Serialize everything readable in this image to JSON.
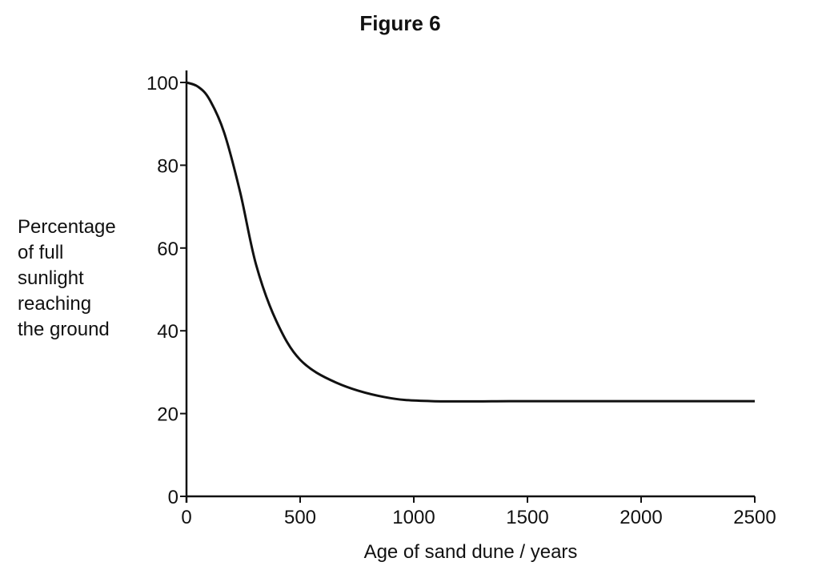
{
  "figure": {
    "title": "Figure 6"
  },
  "chart_data": {
    "type": "line",
    "title": "Figure 6",
    "xlabel": "Age of sand dune / years",
    "ylabel": "Percentage of full sunlight reaching the ground",
    "ylabel_lines": [
      "Percentage",
      "of full",
      "sunlight",
      "reaching",
      "the ground"
    ],
    "xlim": [
      0,
      2500
    ],
    "ylim": [
      0,
      100
    ],
    "xticks": [
      0,
      500,
      1000,
      1500,
      2000,
      2500
    ],
    "yticks": [
      0,
      20,
      40,
      60,
      80,
      100
    ],
    "grid": false,
    "legend": null,
    "series": [
      {
        "name": "sunlight",
        "x": [
          0,
          50,
          100,
          165,
          236,
          306,
          394,
          500,
          658,
          870,
          1081,
          1500,
          2000,
          2500
        ],
        "y": [
          100,
          99,
          96,
          88,
          73.5,
          56,
          42.5,
          33,
          27.5,
          24,
          23,
          23,
          23,
          23
        ]
      }
    ]
  }
}
